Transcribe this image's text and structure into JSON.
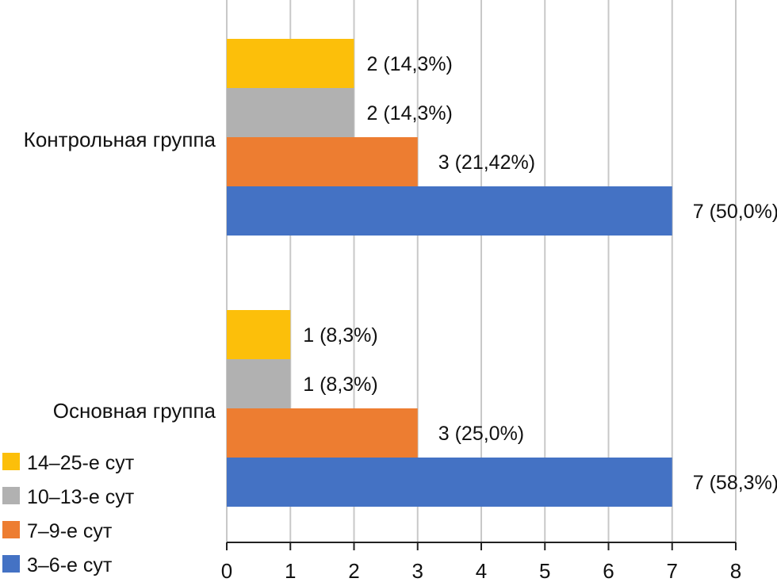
{
  "chart_data": {
    "type": "bar",
    "orientation": "horizontal",
    "title": "",
    "xlabel": "",
    "ylabel": "",
    "xlim": [
      0,
      8
    ],
    "xticks": [
      "0",
      "1",
      "2",
      "3",
      "4",
      "5",
      "6",
      "7",
      "8"
    ],
    "grid": true,
    "legend_position": "bottom-left",
    "categories": [
      "Контрольная группа",
      "Основная группа"
    ],
    "series": [
      {
        "name": "14–25-е сут",
        "color": "#FCBF0A",
        "values": [
          2,
          1
        ],
        "labels": [
          "2 (14,3%)",
          "1 (8,3%)"
        ]
      },
      {
        "name": "10–13-е сут",
        "color": "#B1B1B1",
        "values": [
          2,
          1
        ],
        "labels": [
          "2 (14,3%)",
          "1 (8,3%)"
        ]
      },
      {
        "name": "7–9-е сут",
        "color": "#ED7D31",
        "values": [
          3,
          3
        ],
        "labels": [
          "3 (21,42%)",
          "3 (25,0%)"
        ]
      },
      {
        "name": "3–6-е сут",
        "color": "#4472C4",
        "values": [
          7,
          7
        ],
        "labels": [
          "7 (50,0%)",
          "7 (58,3%)"
        ]
      }
    ],
    "legend": [
      "14–25-е сут",
      "10–13-е сут",
      "7–9-е сут",
      "3–6-е сут"
    ]
  },
  "colors": {
    "grid": "#C8C8C8",
    "axis": "#222222",
    "text": "#111111"
  }
}
